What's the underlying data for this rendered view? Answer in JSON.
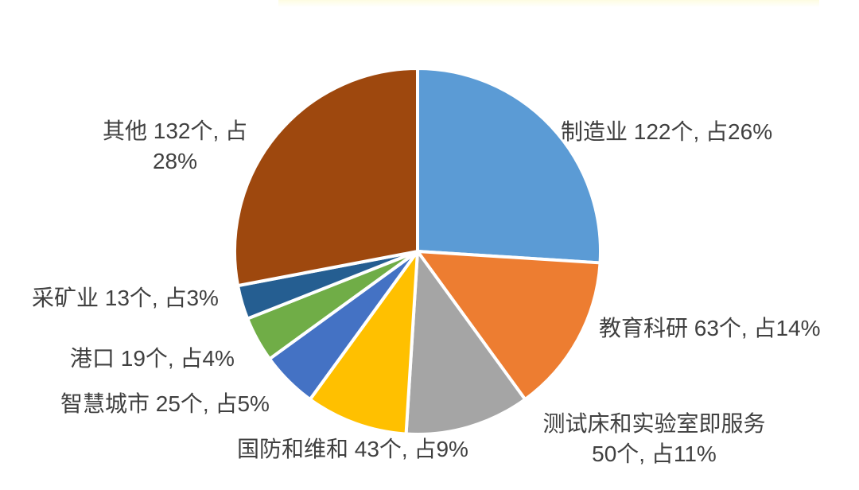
{
  "chart_data": {
    "type": "pie",
    "title": "",
    "categories": [
      "制造业",
      "教育科研",
      "测试床和实验室即服务",
      "国防和维和",
      "智慧城市",
      "港口",
      "采矿业",
      "其他"
    ],
    "values": [
      122,
      63,
      50,
      43,
      25,
      19,
      13,
      132
    ],
    "percents": [
      26,
      14,
      11,
      9,
      5,
      4,
      3,
      28
    ],
    "unit": "个",
    "colors": [
      "#5B9BD5",
      "#ED7D31",
      "#A5A5A5",
      "#FFC000",
      "#4472C4",
      "#70AD47",
      "#255E91",
      "#9E480E"
    ],
    "slice_names": [
      "manufacturing",
      "education-research",
      "testbed-lab-as-a-service",
      "defense-peacekeeping",
      "smart-city",
      "port",
      "mining",
      "others"
    ],
    "labels": [
      "制造业 122个, 占26%",
      "教育科研 63个, 占14%",
      "测试床和实验室即服务\n50个, 占11%",
      "国防和维和 43个, 占9%",
      "智慧城市 25个, 占5%",
      "港口 19个, 占4%",
      "采矿业 13个, 占3%",
      "其他 132个, 占\n28%"
    ],
    "start_angle_deg": 0,
    "direction": "clockwise",
    "legend_position": "none",
    "label_color": "#404040",
    "slice_border_color": "#FFFFFF",
    "background": "#FFFFFF"
  }
}
